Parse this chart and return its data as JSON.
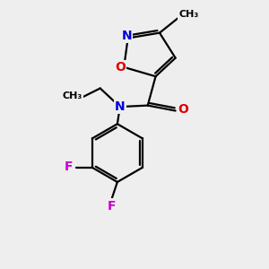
{
  "background_color": "#eeeeee",
  "atom_colors": {
    "C": "#000000",
    "N": "#0000dd",
    "O": "#dd0000",
    "F": "#cc00cc"
  },
  "bond_color": "#000000",
  "bond_width": 1.6,
  "figsize": [
    3.0,
    3.0
  ],
  "dpi": 100,
  "xlim": [
    0,
    10
  ],
  "ylim": [
    0,
    10
  ]
}
